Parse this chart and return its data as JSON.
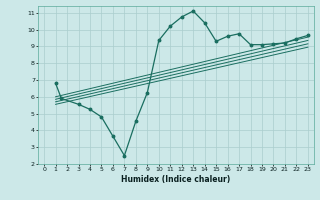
{
  "xlabel": "Humidex (Indice chaleur)",
  "bg_color": "#cce8e8",
  "grid_color": "#aacece",
  "line_color": "#1a6e60",
  "xlim": [
    -0.5,
    23.5
  ],
  "ylim": [
    2,
    11.4
  ],
  "yticks": [
    2,
    3,
    4,
    5,
    6,
    7,
    8,
    9,
    10,
    11
  ],
  "xticks": [
    0,
    1,
    2,
    3,
    4,
    5,
    6,
    7,
    8,
    9,
    10,
    11,
    12,
    13,
    14,
    15,
    16,
    17,
    18,
    19,
    20,
    21,
    22,
    23
  ],
  "curve1_x": [
    1,
    1.5,
    3,
    4,
    5,
    6,
    7,
    8,
    9,
    10,
    11,
    12,
    13,
    14,
    15,
    16,
    17,
    18,
    19,
    20,
    21,
    22,
    23
  ],
  "curve1_y": [
    6.8,
    5.9,
    5.55,
    5.25,
    4.8,
    3.65,
    2.5,
    4.55,
    6.25,
    9.35,
    10.2,
    10.75,
    11.1,
    10.4,
    9.3,
    9.6,
    9.75,
    9.1,
    9.1,
    9.15,
    9.2,
    9.45,
    9.65
  ],
  "line1_x": [
    1,
    23
  ],
  "line1_y": [
    6.0,
    9.55
  ],
  "line2_x": [
    1,
    23
  ],
  "line2_y": [
    5.85,
    9.35
  ],
  "line3_x": [
    1,
    23
  ],
  "line3_y": [
    5.7,
    9.15
  ],
  "line4_x": [
    1,
    23
  ],
  "line4_y": [
    5.55,
    8.95
  ]
}
